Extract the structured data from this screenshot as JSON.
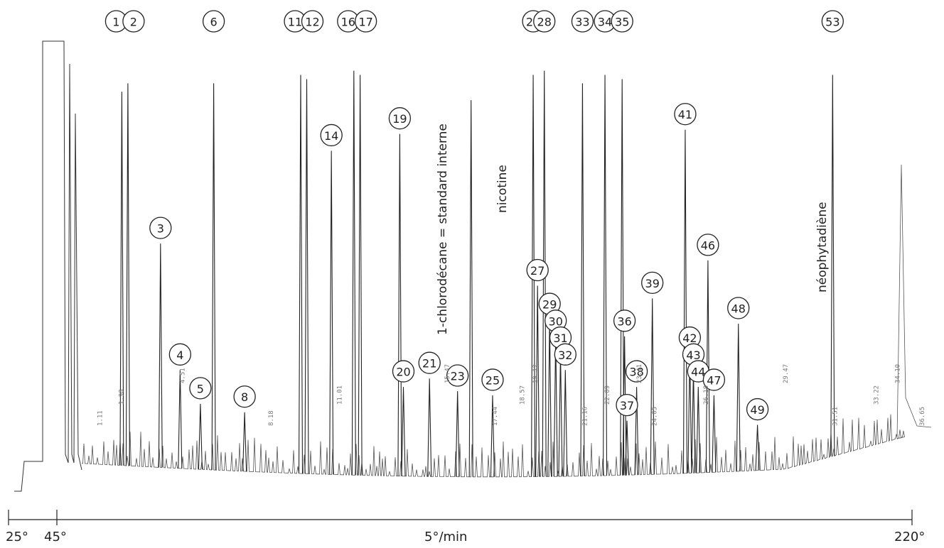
{
  "chart_data": {
    "type": "line",
    "title": "",
    "xlabel": "5°/min",
    "ylabel": "",
    "temperature_ticks": [
      "25°",
      "45°",
      "220°"
    ],
    "grid": false,
    "legend": "none",
    "annotations": [
      {
        "text": "1-chlorodécane = standard interne",
        "peak_rt": 16.55
      },
      {
        "text": "nicotine",
        "peak_rt": 19.12
      },
      {
        "text": "néophytadiène",
        "peak_rt": 31.51
      }
    ],
    "numbered_peaks": [
      {
        "label": "1",
        "rt": 2.1,
        "height": 88
      },
      {
        "label": "2",
        "rt": 2.35,
        "height": 90
      },
      {
        "label": "3",
        "rt": 3.7,
        "height": 52
      },
      {
        "label": "4",
        "rt": 4.51,
        "height": 22
      },
      {
        "label": "5",
        "rt": 5.35,
        "height": 14
      },
      {
        "label": "6",
        "rt": 5.9,
        "height": 90
      },
      {
        "label": "8",
        "rt": 7.18,
        "height": 12
      },
      {
        "label": "11",
        "rt": 9.5,
        "height": 92
      },
      {
        "label": "12",
        "rt": 9.75,
        "height": 91
      },
      {
        "label": "14",
        "rt": 10.77,
        "height": 74
      },
      {
        "label": "16",
        "rt": 11.7,
        "height": 93
      },
      {
        "label": "17",
        "rt": 11.96,
        "height": 92
      },
      {
        "label": "19",
        "rt": 13.6,
        "height": 78
      },
      {
        "label": "20",
        "rt": 13.75,
        "height": 18
      },
      {
        "label": "21",
        "rt": 14.83,
        "height": 20
      },
      {
        "label": "23",
        "rt": 15.99,
        "height": 17
      },
      {
        "label": "1-chlorodécane",
        "rt": 16.55,
        "height": 86
      },
      {
        "label": "25",
        "rt": 17.44,
        "height": 16
      },
      {
        "label": "26",
        "rt": 19.12,
        "height": 92
      },
      {
        "label": "27",
        "rt": 19.3,
        "height": 42
      },
      {
        "label": "28",
        "rt": 19.58,
        "height": 93
      },
      {
        "label": "29",
        "rt": 19.8,
        "height": 34
      },
      {
        "label": "30",
        "rt": 20.05,
        "height": 30
      },
      {
        "label": "31",
        "rt": 20.25,
        "height": 26
      },
      {
        "label": "32",
        "rt": 20.45,
        "height": 22
      },
      {
        "label": "33",
        "rt": 21.16,
        "height": 90
      },
      {
        "label": "34",
        "rt": 22.09,
        "height": 92
      },
      {
        "label": "35",
        "rt": 22.8,
        "height": 91
      },
      {
        "label": "36",
        "rt": 22.9,
        "height": 30
      },
      {
        "label": "37",
        "rt": 23.0,
        "height": 10
      },
      {
        "label": "38",
        "rt": 23.4,
        "height": 18
      },
      {
        "label": "39",
        "rt": 24.05,
        "height": 39
      },
      {
        "label": "41",
        "rt": 25.41,
        "height": 79
      },
      {
        "label": "42",
        "rt": 25.6,
        "height": 26
      },
      {
        "label": "43",
        "rt": 25.75,
        "height": 22
      },
      {
        "label": "44",
        "rt": 25.95,
        "height": 18
      },
      {
        "label": "46",
        "rt": 26.35,
        "height": 48
      },
      {
        "label": "47",
        "rt": 26.6,
        "height": 16
      },
      {
        "label": "48",
        "rt": 27.61,
        "height": 33
      },
      {
        "label": "49",
        "rt": 28.4,
        "height": 9
      },
      {
        "label": "53",
        "rt": 31.51,
        "height": 92
      }
    ],
    "retention_time_labels": [
      "1.11",
      "1.98",
      "4.51",
      "8.18",
      "11.01",
      "15.47",
      "17.44",
      "18.57",
      "19.12",
      "21.16",
      "22.09",
      "23.41",
      "24.05",
      "26.18",
      "29.47",
      "31.51",
      "33.22",
      "34.10",
      "36.65"
    ]
  }
}
